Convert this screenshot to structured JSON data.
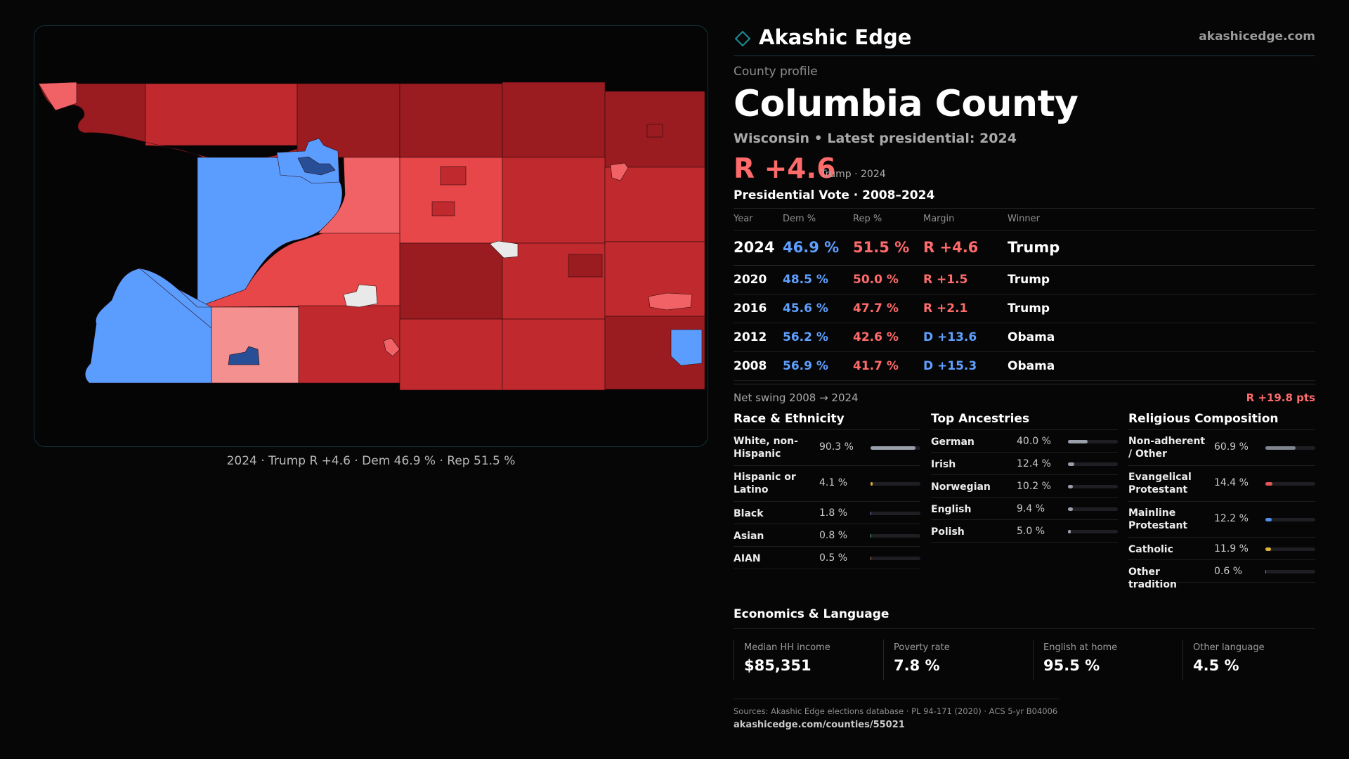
{
  "brand": {
    "name": "Akashic Edge",
    "url": "akashicedge.com"
  },
  "profile": {
    "eyebrow": "County profile",
    "title": "Columbia County",
    "subtitle": "Wisconsin • Latest presidential: 2024",
    "headline_margin": "R +4.6",
    "headline_sub": "Trump · 2024"
  },
  "map": {
    "caption": "2024 · Trump R +4.6 · Dem 46.9 % · Rep 51.5 %",
    "colors": {
      "rep_dark": "#9b1c20",
      "rep_mid": "#c02a2e",
      "rep_light": "#e8474a",
      "rep_pale": "#f59090",
      "dem": "#5b9cff",
      "dem_dark": "#284e96",
      "no_data": "#e9e9e9"
    }
  },
  "vote": {
    "title": "Presidential Vote · 2008–2024",
    "headers": {
      "year": "Year",
      "dem": "Dem %",
      "rep": "Rep %",
      "margin": "Margin",
      "winner": "Winner"
    },
    "rows": [
      {
        "year": "2024",
        "dem": "46.9 %",
        "rep": "51.5 %",
        "margin": "R +4.6",
        "party": "r",
        "winner": "Trump"
      },
      {
        "year": "2020",
        "dem": "48.5 %",
        "rep": "50.0 %",
        "margin": "R +1.5",
        "party": "r",
        "winner": "Trump"
      },
      {
        "year": "2016",
        "dem": "45.6 %",
        "rep": "47.7 %",
        "margin": "R +2.1",
        "party": "r",
        "winner": "Trump"
      },
      {
        "year": "2012",
        "dem": "56.2 %",
        "rep": "42.6 %",
        "margin": "D +13.6",
        "party": "d",
        "winner": "Obama"
      },
      {
        "year": "2008",
        "dem": "56.9 %",
        "rep": "41.7 %",
        "margin": "D +15.3",
        "party": "d",
        "winner": "Obama"
      }
    ],
    "swing_label": "Net swing 2008 → 2024",
    "swing_value": "R +19.8 pts"
  },
  "race": {
    "title": "Race & Ethnicity",
    "rows": [
      {
        "label": "White, non-Hispanic",
        "value": "90.3 %",
        "pct": 90.3,
        "color": "#9aa0ab"
      },
      {
        "label": "Hispanic or Latino",
        "value": "4.1 %",
        "pct": 4.1,
        "color": "#e0a53c"
      },
      {
        "label": "Black",
        "value": "1.8 %",
        "pct": 1.8,
        "color": "#7b7fd8"
      },
      {
        "label": "Asian",
        "value": "0.8 %",
        "pct": 0.8,
        "color": "#59b39b"
      },
      {
        "label": "AIAN",
        "value": "0.5 %",
        "pct": 0.5,
        "color": "#d46e5b"
      }
    ]
  },
  "ancestry": {
    "title": "Top Ancestries",
    "rows": [
      {
        "label": "German",
        "value": "40.0 %",
        "pct": 40.0,
        "color": "#9aa0ab"
      },
      {
        "label": "Irish",
        "value": "12.4 %",
        "pct": 12.4,
        "color": "#9aa0ab"
      },
      {
        "label": "Norwegian",
        "value": "10.2 %",
        "pct": 10.2,
        "color": "#9aa0ab"
      },
      {
        "label": "English",
        "value": "9.4 %",
        "pct": 9.4,
        "color": "#9aa0ab"
      },
      {
        "label": "Polish",
        "value": "5.0 %",
        "pct": 5.0,
        "color": "#9aa0ab"
      }
    ]
  },
  "religion": {
    "title": "Religious Composition",
    "rows": [
      {
        "label": "Non-adherent / Other",
        "value": "60.9 %",
        "pct": 60.9,
        "color": "#80858f"
      },
      {
        "label": "Evangelical Protestant",
        "value": "14.4 %",
        "pct": 14.4,
        "color": "#e0555a"
      },
      {
        "label": "Mainline Protestant",
        "value": "12.2 %",
        "pct": 12.2,
        "color": "#4f8fe8"
      },
      {
        "label": "Catholic",
        "value": "11.9 %",
        "pct": 11.9,
        "color": "#e0b43c"
      },
      {
        "label": "Other tradition",
        "value": "0.6 %",
        "pct": 0.6,
        "color": "#80858f"
      }
    ]
  },
  "economics": {
    "title": "Economics & Language",
    "stats": [
      {
        "label": "Median HH income",
        "value": "$85,351"
      },
      {
        "label": "Poverty rate",
        "value": "7.8 %"
      },
      {
        "label": "English at home",
        "value": "95.5 %"
      },
      {
        "label": "Other language",
        "value": "4.5 %"
      }
    ]
  },
  "sources": {
    "text": "Sources: Akashic Edge elections database · PL 94-171 (2020) · ACS 5-yr B04006",
    "url": "akashicedge.com/counties/55021"
  }
}
